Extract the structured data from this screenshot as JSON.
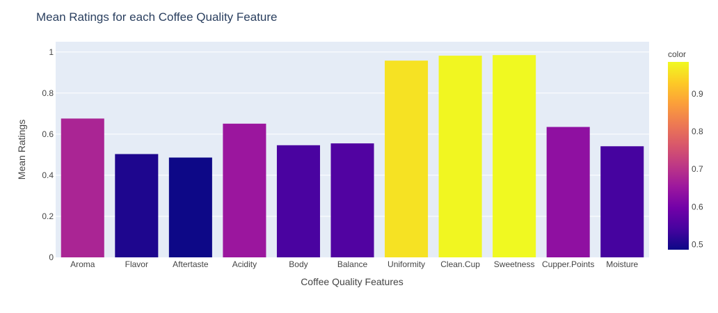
{
  "chart_data": {
    "type": "bar",
    "title": "Mean Ratings for each Coffee Quality Feature",
    "xlabel": "Coffee Quality Features",
    "ylabel": "Mean Ratings",
    "categories": [
      "Aroma",
      "Flavor",
      "Aftertaste",
      "Acidity",
      "Body",
      "Balance",
      "Uniformity",
      "Clean.Cup",
      "Sweetness",
      "Cupper.Points",
      "Moisture"
    ],
    "values": [
      0.676,
      0.503,
      0.486,
      0.651,
      0.546,
      0.555,
      0.958,
      0.982,
      0.985,
      0.635,
      0.541
    ],
    "ylim": [
      0,
      1.05
    ],
    "yticks": [
      0,
      0.2,
      0.4,
      0.6,
      0.8,
      1
    ],
    "ytick_labels": [
      "0",
      "0.2",
      "0.4",
      "0.6",
      "0.8",
      "1"
    ],
    "grid": true,
    "colorbar": {
      "title": "color",
      "range": [
        0.486,
        0.985
      ],
      "ticks": [
        0.5,
        0.6,
        0.7,
        0.8,
        0.9
      ],
      "tick_labels": [
        "0.5",
        "0.6",
        "0.7",
        "0.8",
        "0.9"
      ],
      "colorscale": [
        "#0d0887",
        "#46039f",
        "#7201a8",
        "#9c179e",
        "#bd3786",
        "#d8576b",
        "#ed7953",
        "#fb9f3a",
        "#fdca26",
        "#f0f921"
      ]
    },
    "colors": {
      "plot_bg": "#e5ecf6",
      "grid": "#ffffff",
      "title": "#2a3f5f",
      "text": "#444444"
    }
  }
}
